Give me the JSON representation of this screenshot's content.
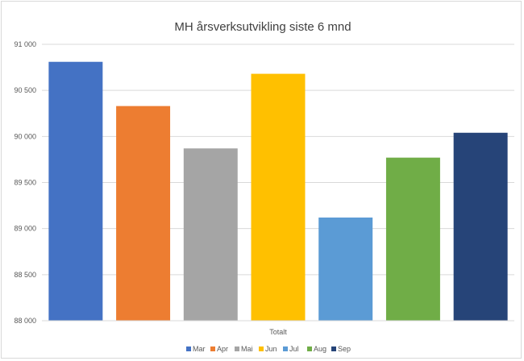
{
  "chart_data": {
    "type": "bar",
    "title": "MH årsverksutvikling siste 6 mnd",
    "xlabel": "",
    "ylabel": "",
    "categories": [
      "Totalt"
    ],
    "ylim": [
      88000,
      91000
    ],
    "yticks": [
      88000,
      88500,
      89000,
      89500,
      90000,
      90500,
      91000
    ],
    "ytick_labels": [
      "88 000",
      "88 500",
      "89 000",
      "89 500",
      "90 000",
      "90 500",
      "91 000"
    ],
    "grid": true,
    "legend_position": "bottom",
    "series": [
      {
        "name": "Mar",
        "values": [
          90810
        ],
        "color": "#4472C4"
      },
      {
        "name": "Apr",
        "values": [
          90330
        ],
        "color": "#ED7D31"
      },
      {
        "name": "Mai",
        "values": [
          89870
        ],
        "color": "#A5A5A5"
      },
      {
        "name": "Jun",
        "values": [
          90680
        ],
        "color": "#FFC000"
      },
      {
        "name": "Jul",
        "values": [
          89120
        ],
        "color": "#5B9BD5"
      },
      {
        "name": "Aug",
        "values": [
          89770
        ],
        "color": "#70AD47"
      },
      {
        "name": "Sep",
        "values": [
          90040
        ],
        "color": "#264478"
      }
    ]
  }
}
